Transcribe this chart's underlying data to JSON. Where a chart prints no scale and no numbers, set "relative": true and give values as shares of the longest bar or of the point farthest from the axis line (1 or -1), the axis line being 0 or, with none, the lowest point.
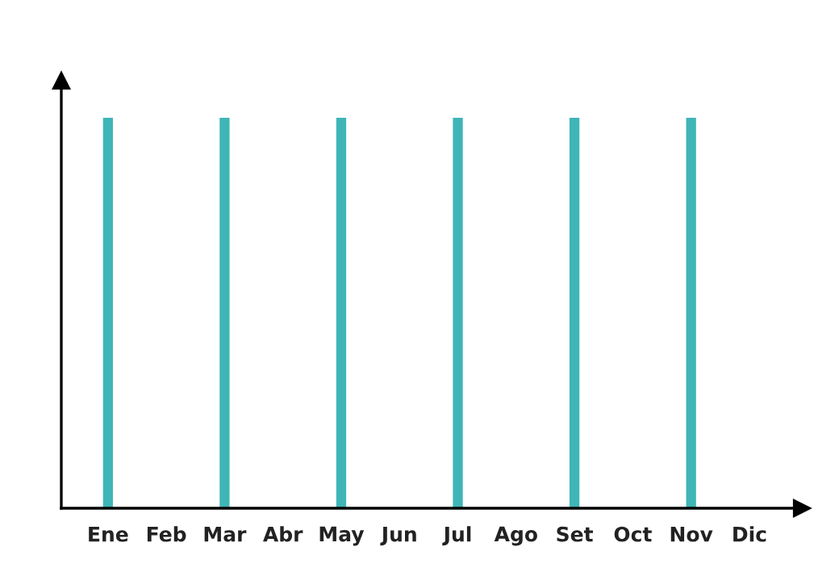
{
  "chart_data": {
    "type": "bar",
    "relative": true,
    "categories": [
      "Ene",
      "Feb",
      "Mar",
      "Abr",
      "May",
      "Jun",
      "Jul",
      "Ago",
      "Set",
      "Oct",
      "Nov",
      "Dic"
    ],
    "values": [
      1,
      null,
      1,
      null,
      1,
      null,
      1,
      null,
      1,
      null,
      1,
      null
    ],
    "color": "#3fb5b8",
    "grid": false,
    "legend": false,
    "tick_labels": "x"
  }
}
